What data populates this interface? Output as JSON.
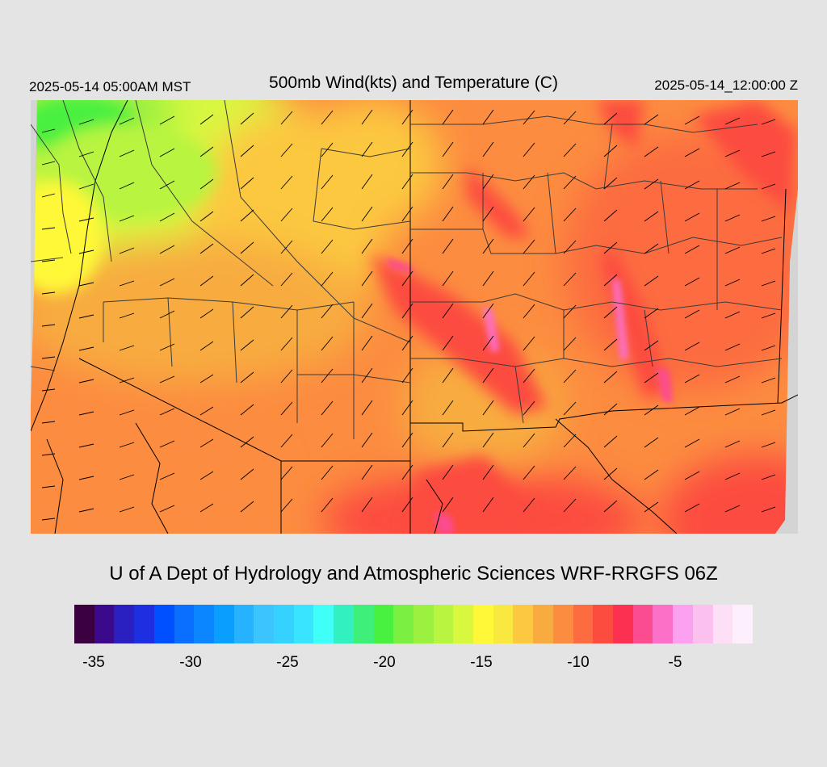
{
  "header": {
    "valid_local": "2025-05-14 05:00AM MST",
    "title": "500mb Wind(kts) and Temperature (C)",
    "valid_utc": "2025-05-14_12:00:00 Z"
  },
  "footer": {
    "credit": "U of A Dept of Hydrology and Atmospheric Sciences WRF-RRGFS 06Z"
  },
  "colorbar": {
    "min": -36,
    "max": -1,
    "colors": [
      "#3a0040",
      "#3b0a8c",
      "#2a1fc0",
      "#1d2fe0",
      "#0050ff",
      "#0a6eff",
      "#0b86ff",
      "#0a9eff",
      "#26b2ff",
      "#3cc4ff",
      "#36d2ff",
      "#38e4ff",
      "#40fff8",
      "#32f0c0",
      "#3ef07a",
      "#48f040",
      "#7cf040",
      "#9cf040",
      "#b8f440",
      "#d8f840",
      "#fff838",
      "#f8e840",
      "#fcc840",
      "#f8ac40",
      "#fc8c40",
      "#fc6c40",
      "#fc4c40",
      "#fc3050",
      "#fc4c90",
      "#fc70c8",
      "#fca0f0",
      "#fcc0ee",
      "#fde0f6",
      "#fdf0fc"
    ],
    "tick_labels": [
      {
        "label": "-35",
        "value": -35
      },
      {
        "label": "-30",
        "value": -30
      },
      {
        "label": "-25",
        "value": -25
      },
      {
        "label": "-20",
        "value": -20
      },
      {
        "label": "-15",
        "value": -15
      },
      {
        "label": "-10",
        "value": -10
      },
      {
        "label": "-5",
        "value": -5
      }
    ]
  }
}
